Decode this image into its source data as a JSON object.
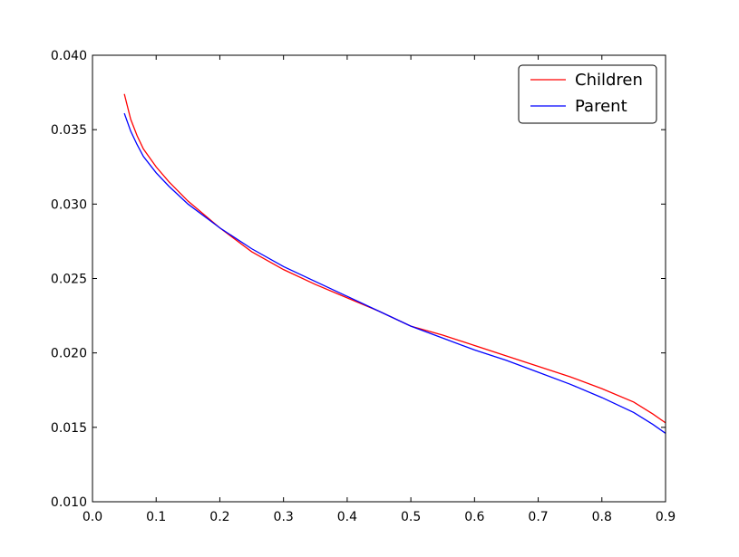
{
  "chart_data": {
    "type": "line",
    "xlim": [
      0.0,
      0.9
    ],
    "ylim": [
      0.01,
      0.04
    ],
    "x_ticks": [
      "0.0",
      "0.1",
      "0.2",
      "0.3",
      "0.4",
      "0.5",
      "0.6",
      "0.7",
      "0.8",
      "0.9"
    ],
    "y_ticks": [
      "0.010",
      "0.015",
      "0.020",
      "0.025",
      "0.030",
      "0.035",
      "0.040"
    ],
    "grid": false,
    "legend_position": "top-right",
    "series": [
      {
        "name": "Children",
        "color": "#ff0000",
        "x": [
          0.05,
          0.06,
          0.07,
          0.08,
          0.1,
          0.12,
          0.15,
          0.2,
          0.25,
          0.3,
          0.35,
          0.4,
          0.45,
          0.5,
          0.55,
          0.6,
          0.65,
          0.7,
          0.75,
          0.8,
          0.85,
          0.88,
          0.9
        ],
        "y": [
          0.0374,
          0.0357,
          0.0346,
          0.0337,
          0.0325,
          0.0315,
          0.0302,
          0.0284,
          0.0268,
          0.0256,
          0.0246,
          0.0237,
          0.0228,
          0.0218,
          0.0212,
          0.0205,
          0.0198,
          0.0191,
          0.0184,
          0.0176,
          0.0167,
          0.0159,
          0.0153
        ]
      },
      {
        "name": "Parent",
        "color": "#0000ff",
        "x": [
          0.05,
          0.06,
          0.07,
          0.08,
          0.1,
          0.12,
          0.15,
          0.2,
          0.25,
          0.3,
          0.35,
          0.4,
          0.45,
          0.5,
          0.55,
          0.6,
          0.65,
          0.7,
          0.75,
          0.8,
          0.85,
          0.88,
          0.9
        ],
        "y": [
          0.0361,
          0.0349,
          0.034,
          0.0332,
          0.0321,
          0.0312,
          0.03,
          0.0284,
          0.027,
          0.0258,
          0.0248,
          0.0238,
          0.0228,
          0.0218,
          0.021,
          0.0202,
          0.0195,
          0.0187,
          0.0179,
          0.017,
          0.016,
          0.0152,
          0.0146
        ]
      }
    ]
  }
}
